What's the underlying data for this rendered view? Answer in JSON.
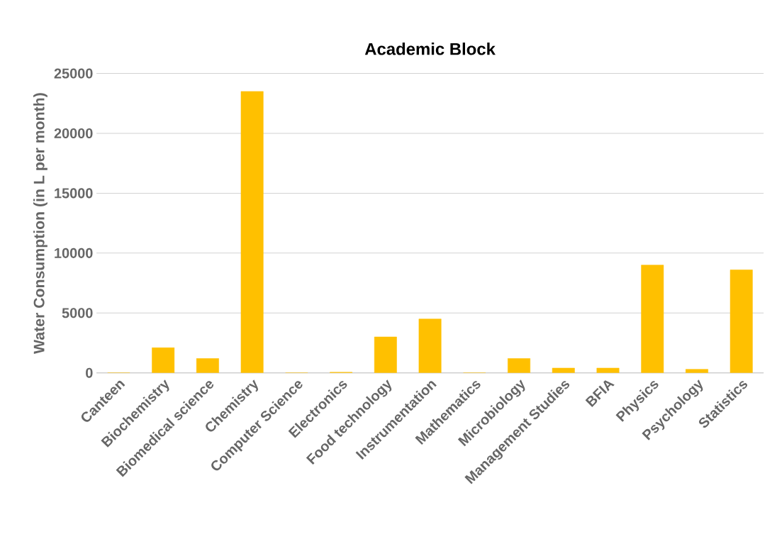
{
  "chart_data": {
    "type": "bar",
    "title": "Academic Block",
    "ylabel": "Water Consumption (in L per month)",
    "categories": [
      "Canteen",
      "Biochemistry",
      "Biomedical science",
      "Chemistry",
      "Computer Science",
      "Electronics",
      "Food technology",
      "Instrumentation",
      "Mathematics",
      "Microbiology",
      "Management Studies",
      "BFIA",
      "Physics",
      "Psychology",
      "Statistics"
    ],
    "values": [
      0,
      2100,
      1200,
      23500,
      0,
      50,
      3000,
      4500,
      0,
      1200,
      400,
      400,
      9000,
      300,
      8600
    ],
    "color": "#ffc000",
    "ylim": [
      0,
      25000
    ],
    "yticks": [
      0,
      5000,
      10000,
      15000,
      20000,
      25000
    ],
    "grid": "y"
  }
}
